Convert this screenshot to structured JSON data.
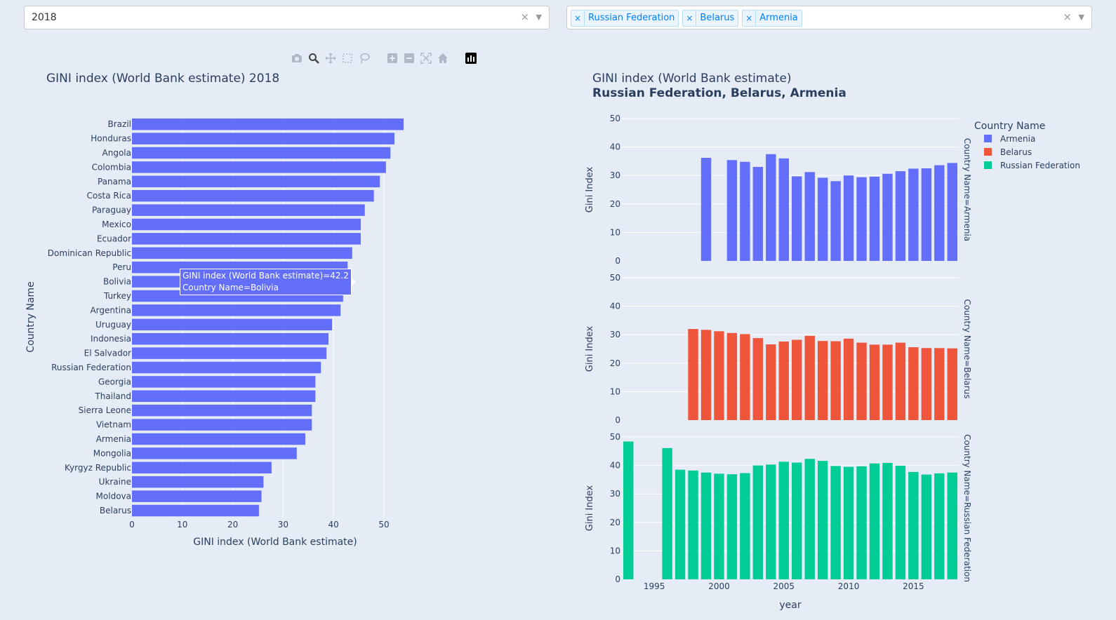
{
  "controls": {
    "year_dropdown": {
      "value": "2018",
      "clear_icon": "clear-icon",
      "arrow_icon": "chevron-down-icon"
    },
    "country_dropdown": {
      "tags": [
        "Russian Federation",
        "Belarus",
        "Armenia"
      ],
      "clear_icon": "clear-icon",
      "arrow_icon": "chevron-down-icon"
    }
  },
  "modebar": {
    "icons": [
      "camera-icon",
      "zoom-icon",
      "pan-icon",
      "box-select-icon",
      "lasso-icon",
      "zoom-in-icon",
      "zoom-out-icon",
      "autoscale-icon",
      "reset-axes-icon",
      "plotly-logo-icon"
    ]
  },
  "tooltip": {
    "line1": "GINI index (World Bank estimate)=42.2",
    "line2": "Country Name=Bolivia"
  },
  "colors": {
    "armenia": "#636efa",
    "belarus": "#ef553b",
    "russia": "#00cc96",
    "bg": "#e5ecf6",
    "grid": "#ffffff",
    "text": "#2a3f5f"
  },
  "chart_data": [
    {
      "type": "bar",
      "orientation": "horizontal",
      "title": "GINI index (World Bank estimate) 2018",
      "xlabel": "GINI index (World Bank estimate)",
      "ylabel": "Country Name",
      "xlim": [
        0,
        55
      ],
      "xticks": [
        0,
        10,
        20,
        30,
        40,
        50
      ],
      "categories": [
        "Brazil",
        "Honduras",
        "Angola",
        "Colombia",
        "Panama",
        "Costa Rica",
        "Paraguay",
        "Mexico",
        "Ecuador",
        "Dominican Republic",
        "Peru",
        "Bolivia",
        "Turkey",
        "Argentina",
        "Uruguay",
        "Indonesia",
        "El Salvador",
        "Russian Federation",
        "Georgia",
        "Thailand",
        "Sierra Leone",
        "Vietnam",
        "Armenia",
        "Mongolia",
        "Kyrgyz Republic",
        "Ukraine",
        "Moldova",
        "Belarus"
      ],
      "values": [
        53.9,
        52.1,
        51.3,
        50.4,
        49.2,
        48.0,
        46.2,
        45.4,
        45.4,
        43.7,
        42.8,
        42.2,
        41.9,
        41.4,
        39.7,
        39.0,
        38.6,
        37.5,
        36.4,
        36.4,
        35.7,
        35.7,
        34.4,
        32.7,
        27.7,
        26.1,
        25.7,
        25.2
      ],
      "color": "#636efa"
    },
    {
      "type": "bar",
      "title": "GINI index (World Bank estimate)",
      "subtitle": "Russian Federation, Belarus, Armenia",
      "xlabel": "year",
      "ylabel": "Gini Index",
      "legend_title": "Country Name",
      "legend_position": "top-right",
      "xlim": [
        1992.5,
        2018.5
      ],
      "xticks": [
        1995,
        2000,
        2005,
        2010,
        2015
      ],
      "ylim": [
        0,
        50
      ],
      "yticks": [
        0,
        10,
        20,
        30,
        40,
        50
      ],
      "series": [
        {
          "name": "Armenia",
          "facet_label": "Country Name=Armenia",
          "color": "#636efa",
          "x": [
            1999,
            2001,
            2002,
            2003,
            2004,
            2005,
            2006,
            2007,
            2008,
            2009,
            2010,
            2011,
            2012,
            2013,
            2014,
            2015,
            2016,
            2017,
            2018
          ],
          "values": [
            36.2,
            35.4,
            34.8,
            33.0,
            37.5,
            36.0,
            29.7,
            31.2,
            29.2,
            28.0,
            30.0,
            29.4,
            29.6,
            30.6,
            31.5,
            32.4,
            32.5,
            33.6,
            34.4
          ]
        },
        {
          "name": "Belarus",
          "facet_label": "Country Name=Belarus",
          "color": "#ef553b",
          "x": [
            1998,
            1999,
            2000,
            2001,
            2002,
            2003,
            2004,
            2005,
            2006,
            2007,
            2008,
            2009,
            2010,
            2011,
            2012,
            2013,
            2014,
            2015,
            2016,
            2017,
            2018
          ],
          "values": [
            32.0,
            31.7,
            31.2,
            30.6,
            30.2,
            28.8,
            26.6,
            27.6,
            28.2,
            29.6,
            27.8,
            27.7,
            28.6,
            27.2,
            26.5,
            26.5,
            27.2,
            25.6,
            25.3,
            25.3,
            25.2
          ]
        },
        {
          "name": "Russian Federation",
          "facet_label": "Country Name=Russian Federation",
          "color": "#00cc96",
          "x": [
            1993,
            1996,
            1997,
            1998,
            1999,
            2000,
            2001,
            2002,
            2003,
            2004,
            2005,
            2006,
            2007,
            2008,
            2009,
            2010,
            2011,
            2012,
            2013,
            2014,
            2015,
            2016,
            2017,
            2018
          ],
          "values": [
            48.4,
            46.1,
            38.5,
            38.2,
            37.5,
            37.1,
            36.9,
            37.3,
            40.0,
            40.3,
            41.3,
            41.0,
            42.3,
            41.6,
            39.8,
            39.5,
            39.7,
            40.7,
            40.9,
            39.9,
            37.7,
            36.8,
            37.2,
            37.5
          ]
        }
      ]
    }
  ]
}
